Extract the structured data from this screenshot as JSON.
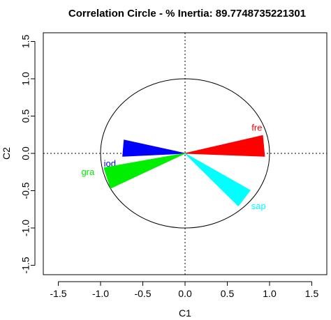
{
  "chart_data": {
    "type": "scatter",
    "title": "Correlation Circle - % Inertia: 89.7748735221301",
    "xlabel": "C1",
    "ylabel": "C2",
    "xlim": [
      -1.75,
      1.65
    ],
    "ylim": [
      -1.65,
      1.65
    ],
    "xticks": [
      "-1.5",
      "-1.0",
      "-0.5",
      "0.0",
      "0.5",
      "1.0",
      "1.5"
    ],
    "yticks": [
      "-1.5",
      "-1.0",
      "-0.5",
      "0.0",
      "0.5",
      "1.0",
      "1.5"
    ],
    "xtick_values": [
      -1.5,
      -1.0,
      -0.5,
      0.0,
      0.5,
      1.0,
      1.5
    ],
    "ytick_values": [
      -1.5,
      -1.0,
      -0.5,
      0.0,
      0.5,
      1.0,
      1.5
    ],
    "circle_radius": 1,
    "reference_lines": "dotted lines at x = 0 and y = 0",
    "grid": false,
    "variables": [
      {
        "name": "fre",
        "x": 0.93,
        "y": 0.1,
        "color": "#ff0000",
        "label_x": 0.85,
        "label_y": 0.34
      },
      {
        "name": "iod",
        "x": -0.73,
        "y": 0.07,
        "color": "#0000ff",
        "label_x": -0.89,
        "label_y": -0.14
      },
      {
        "name": "gra",
        "x": -0.92,
        "y": -0.33,
        "color": "#00ee00",
        "label_x": -1.15,
        "label_y": -0.25
      },
      {
        "name": "sap",
        "x": 0.7,
        "y": -0.6,
        "color": "#00ffff",
        "label_x": 0.87,
        "label_y": -0.71
      }
    ]
  }
}
